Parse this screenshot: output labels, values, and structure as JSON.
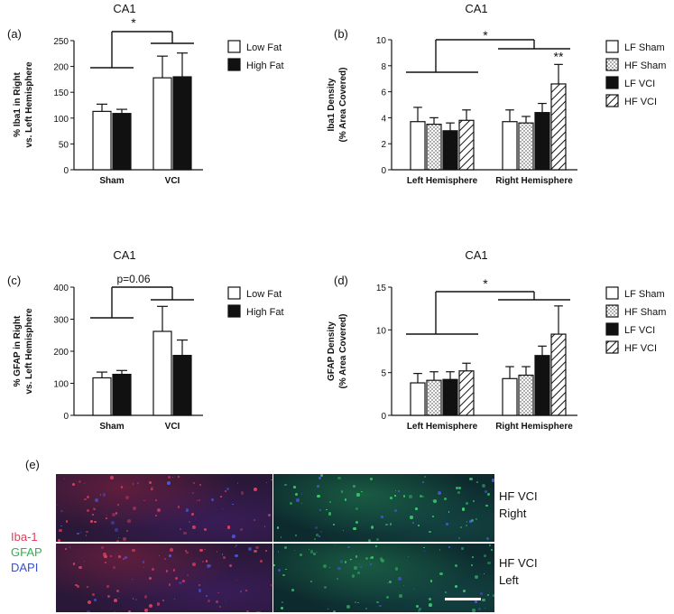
{
  "chart_data": [
    {
      "panel": "(a)",
      "type": "bar",
      "title": "CA1",
      "ylabel": "% Iba1 in Right vs. Left Hemisphere",
      "ylim": [
        0,
        250
      ],
      "yticks": [
        0,
        50,
        100,
        150,
        200,
        250
      ],
      "categories": [
        "Sham",
        "VCI"
      ],
      "series": [
        {
          "name": "Low Fat",
          "color": "#ffffff",
          "pattern": "solid-white",
          "values": [
            113,
            178
          ],
          "errors": [
            14,
            42
          ]
        },
        {
          "name": "High Fat",
          "color": "#111111",
          "pattern": "solid-black",
          "values": [
            109,
            180
          ],
          "errors": [
            8,
            46
          ]
        }
      ],
      "significance": "*",
      "legend": "right"
    },
    {
      "panel": "(b)",
      "type": "bar",
      "title": "CA1",
      "ylabel": "Iba1 Density (% Area Covered)",
      "ylim": [
        0,
        10
      ],
      "yticks": [
        0,
        2,
        4,
        6,
        8,
        10
      ],
      "categories": [
        "Left Hemisphere",
        "Right Hemisphere"
      ],
      "series": [
        {
          "name": "LF Sham",
          "pattern": "white",
          "values": [
            3.7,
            3.7
          ],
          "errors": [
            1.1,
            0.9
          ]
        },
        {
          "name": "HF Sham",
          "pattern": "dots",
          "values": [
            3.5,
            3.6
          ],
          "errors": [
            0.5,
            0.5
          ]
        },
        {
          "name": "LF VCI",
          "pattern": "black",
          "values": [
            3.0,
            4.4
          ],
          "errors": [
            0.6,
            0.7
          ]
        },
        {
          "name": "HF VCI",
          "pattern": "hatch",
          "values": [
            3.8,
            6.6
          ],
          "errors": [
            0.8,
            1.5
          ]
        }
      ],
      "significance": "*",
      "significance2": "**",
      "legend": "right"
    },
    {
      "panel": "(c)",
      "type": "bar",
      "title": "CA1",
      "ylabel": "% GFAP in Right vs. Left Hemisphere",
      "ylim": [
        0,
        400
      ],
      "yticks": [
        0,
        100,
        200,
        300,
        400
      ],
      "categories": [
        "Sham",
        "VCI"
      ],
      "series": [
        {
          "name": "Low Fat",
          "pattern": "solid-white",
          "values": [
            117,
            262
          ],
          "errors": [
            18,
            78
          ]
        },
        {
          "name": "High Fat",
          "pattern": "solid-black",
          "values": [
            128,
            187
          ],
          "errors": [
            12,
            48
          ]
        }
      ],
      "significance": "p=0.06",
      "legend": "right"
    },
    {
      "panel": "(d)",
      "type": "bar",
      "title": "CA1",
      "ylabel": "GFAP Density (% Area Covered)",
      "ylim": [
        0,
        15
      ],
      "yticks": [
        0,
        5,
        10,
        15
      ],
      "categories": [
        "Left Hemisphere",
        "Right Hemisphere"
      ],
      "series": [
        {
          "name": "LF Sham",
          "pattern": "white",
          "values": [
            3.8,
            4.3
          ],
          "errors": [
            1.1,
            1.4
          ]
        },
        {
          "name": "HF Sham",
          "pattern": "dots",
          "values": [
            4.1,
            4.7
          ],
          "errors": [
            1.0,
            1.0
          ]
        },
        {
          "name": "LF VCI",
          "pattern": "black",
          "values": [
            4.2,
            7.0
          ],
          "errors": [
            0.9,
            1.1
          ]
        },
        {
          "name": "HF VCI",
          "pattern": "hatch",
          "values": [
            5.2,
            9.5
          ],
          "errors": [
            0.9,
            3.3
          ]
        }
      ],
      "significance": "*",
      "legend": "right"
    }
  ],
  "panel_e": {
    "label": "(e)",
    "stain_labels": [
      "Iba-1",
      "GFAP",
      "DAPI"
    ],
    "stain_colors": [
      "#e0405a",
      "#2fb050",
      "#3a50c8"
    ],
    "row_labels": [
      [
        "HF VCI",
        "Right"
      ],
      [
        "HF VCI",
        "Left"
      ]
    ]
  }
}
